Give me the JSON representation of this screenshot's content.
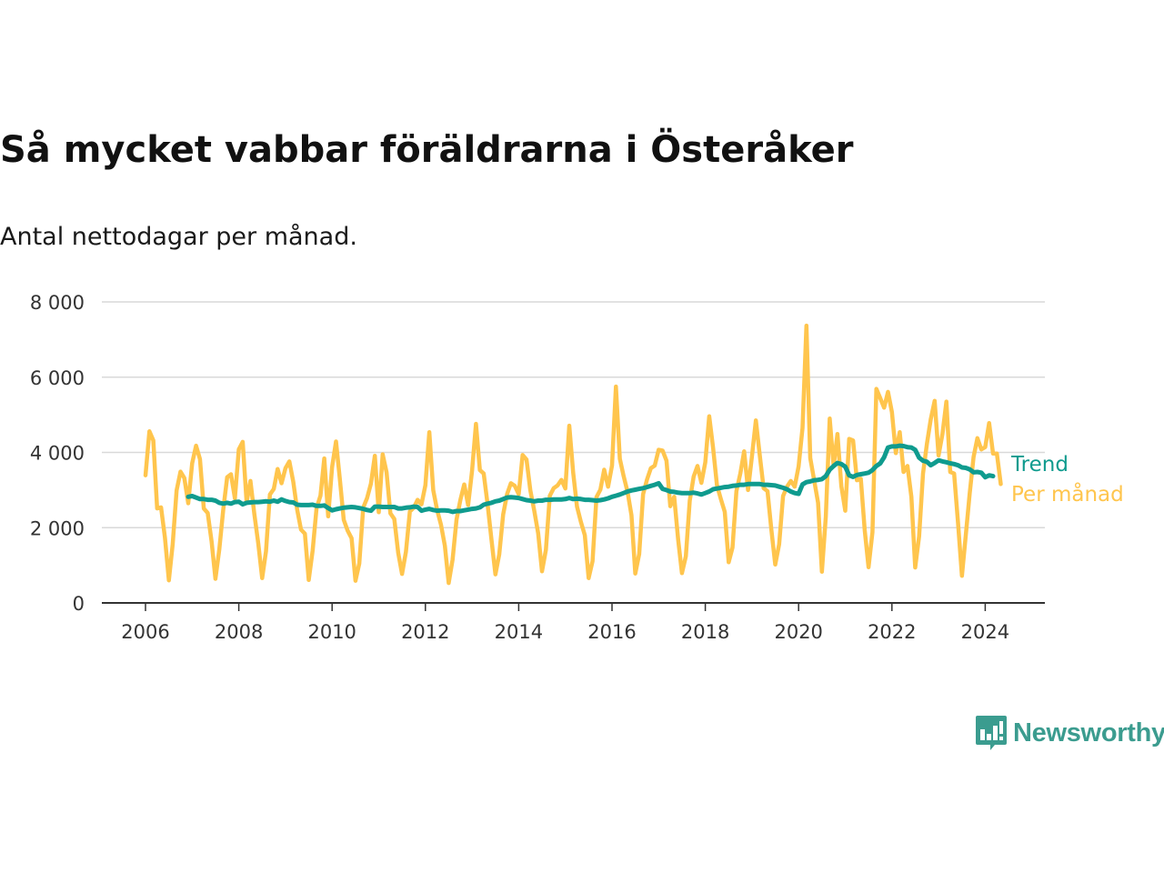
{
  "title": "Så mycket vabbar föräldrarna i Österåker",
  "subtitle": "Antal nettodagar per månad.",
  "logo": {
    "icon": "newsworthy-logo-icon",
    "text": "Newsworthy"
  },
  "colors": {
    "trend": "#0f9b8e",
    "monthly": "#ffc54d",
    "grid": "#d9d9d9",
    "axis": "#333333",
    "logo": "#3b9c8f"
  },
  "chart_data": {
    "type": "line",
    "xlim": [
      2006,
      2025.2
    ],
    "ylim": [
      0,
      8000
    ],
    "y_ticks": [
      0,
      2000,
      4000,
      6000,
      8000
    ],
    "y_tick_labels": [
      "0",
      "2 000",
      "4 000",
      "6 000",
      "8 000"
    ],
    "x_ticks": [
      2006,
      2008,
      2010,
      2012,
      2014,
      2016,
      2018,
      2020,
      2022,
      2024
    ],
    "x_tick_labels": [
      "2006",
      "2008",
      "2010",
      "2012",
      "2014",
      "2016",
      "2018",
      "2020",
      "2022",
      "2024"
    ],
    "grid": true,
    "legend": "inline-right",
    "series": [
      {
        "name": "Trend",
        "color": "#0f9b8e",
        "start": "2006-12",
        "values": [
          2820,
          2840,
          2800,
          2760,
          2760,
          2740,
          2740,
          2720,
          2660,
          2640,
          2660,
          2640,
          2680,
          2690,
          2620,
          2660,
          2670,
          2680,
          2680,
          2690,
          2700,
          2690,
          2720,
          2690,
          2750,
          2710,
          2680,
          2670,
          2610,
          2600,
          2600,
          2600,
          2610,
          2580,
          2580,
          2590,
          2520,
          2460,
          2490,
          2510,
          2530,
          2540,
          2550,
          2540,
          2520,
          2500,
          2470,
          2450,
          2560,
          2560,
          2550,
          2550,
          2550,
          2550,
          2510,
          2510,
          2530,
          2540,
          2560,
          2550,
          2450,
          2480,
          2500,
          2470,
          2450,
          2460,
          2460,
          2450,
          2420,
          2440,
          2440,
          2460,
          2480,
          2500,
          2510,
          2540,
          2610,
          2640,
          2660,
          2700,
          2720,
          2760,
          2800,
          2810,
          2800,
          2790,
          2760,
          2730,
          2720,
          2700,
          2720,
          2720,
          2740,
          2740,
          2750,
          2750,
          2750,
          2760,
          2790,
          2760,
          2770,
          2760,
          2740,
          2740,
          2730,
          2720,
          2730,
          2750,
          2780,
          2820,
          2850,
          2880,
          2920,
          2960,
          2990,
          3010,
          3030,
          3050,
          3080,
          3110,
          3140,
          3180,
          3030,
          3000,
          2960,
          2950,
          2930,
          2920,
          2920,
          2920,
          2930,
          2910,
          2880,
          2920,
          2960,
          3020,
          3040,
          3060,
          3080,
          3090,
          3110,
          3120,
          3140,
          3140,
          3160,
          3160,
          3160,
          3160,
          3140,
          3140,
          3130,
          3120,
          3090,
          3060,
          3020,
          2960,
          2920,
          2900,
          3150,
          3210,
          3230,
          3260,
          3270,
          3290,
          3370,
          3540,
          3640,
          3720,
          3690,
          3620,
          3390,
          3350,
          3400,
          3420,
          3440,
          3460,
          3530,
          3640,
          3710,
          3870,
          4130,
          4160,
          4160,
          4180,
          4170,
          4140,
          4130,
          4070,
          3860,
          3780,
          3750,
          3660,
          3720,
          3790,
          3760,
          3740,
          3710,
          3690,
          3660,
          3600,
          3590,
          3550,
          3470,
          3480,
          3460,
          3340,
          3390,
          3370
        ]
      },
      {
        "name": "Per månad",
        "color": "#ffc54d",
        "start": "2006-01",
        "values": [
          3390,
          4560,
          4320,
          2510,
          2540,
          1730,
          600,
          1560,
          2990,
          3490,
          3320,
          2650,
          3710,
          4180,
          3820,
          2510,
          2390,
          1630,
          640,
          1430,
          2480,
          3340,
          3420,
          2780,
          4080,
          4280,
          2670,
          3240,
          2360,
          1580,
          660,
          1370,
          2880,
          3030,
          3560,
          3180,
          3580,
          3760,
          3220,
          2490,
          1950,
          1840,
          610,
          1390,
          2520,
          2850,
          3840,
          2300,
          3610,
          4290,
          3270,
          2210,
          1920,
          1720,
          590,
          1050,
          2530,
          2790,
          3170,
          3910,
          2410,
          3950,
          3470,
          2380,
          2230,
          1330,
          770,
          1360,
          2430,
          2530,
          2740,
          2620,
          3130,
          4540,
          3000,
          2480,
          2080,
          1520,
          530,
          1150,
          2210,
          2740,
          3150,
          2600,
          3510,
          4760,
          3530,
          3440,
          2620,
          1670,
          760,
          1290,
          2350,
          2890,
          3180,
          3110,
          2890,
          3930,
          3810,
          2990,
          2450,
          1850,
          840,
          1410,
          2850,
          3050,
          3120,
          3270,
          3040,
          4710,
          3460,
          2560,
          2150,
          1800,
          660,
          1110,
          2810,
          3010,
          3540,
          3090,
          3650,
          5750,
          3830,
          3370,
          2950,
          2330,
          780,
          1300,
          2890,
          3280,
          3580,
          3650,
          4070,
          4050,
          3780,
          2570,
          2820,
          1690,
          790,
          1240,
          2720,
          3360,
          3640,
          3190,
          3740,
          4960,
          4110,
          3130,
          2760,
          2420,
          1080,
          1470,
          2970,
          3440,
          4030,
          3000,
          3900,
          4850,
          3920,
          3050,
          2970,
          1930,
          1020,
          1560,
          2840,
          3090,
          3240,
          3090,
          3630,
          4650,
          7370,
          3850,
          3260,
          2660,
          830,
          2290,
          4900,
          3630,
          4490,
          3100,
          2450,
          4360,
          4320,
          3260,
          3300,
          1930,
          950,
          1880,
          5690,
          5440,
          5190,
          5610,
          5070,
          3980,
          4540,
          3480,
          3640,
          2820,
          940,
          1770,
          3440,
          4230,
          4880,
          5370,
          3920,
          4490,
          5350,
          3480,
          3440,
          2130,
          720,
          1790,
          2900,
          3880,
          4380,
          4080,
          4140,
          4780,
          3970,
          3970,
          3160
        ]
      }
    ]
  }
}
